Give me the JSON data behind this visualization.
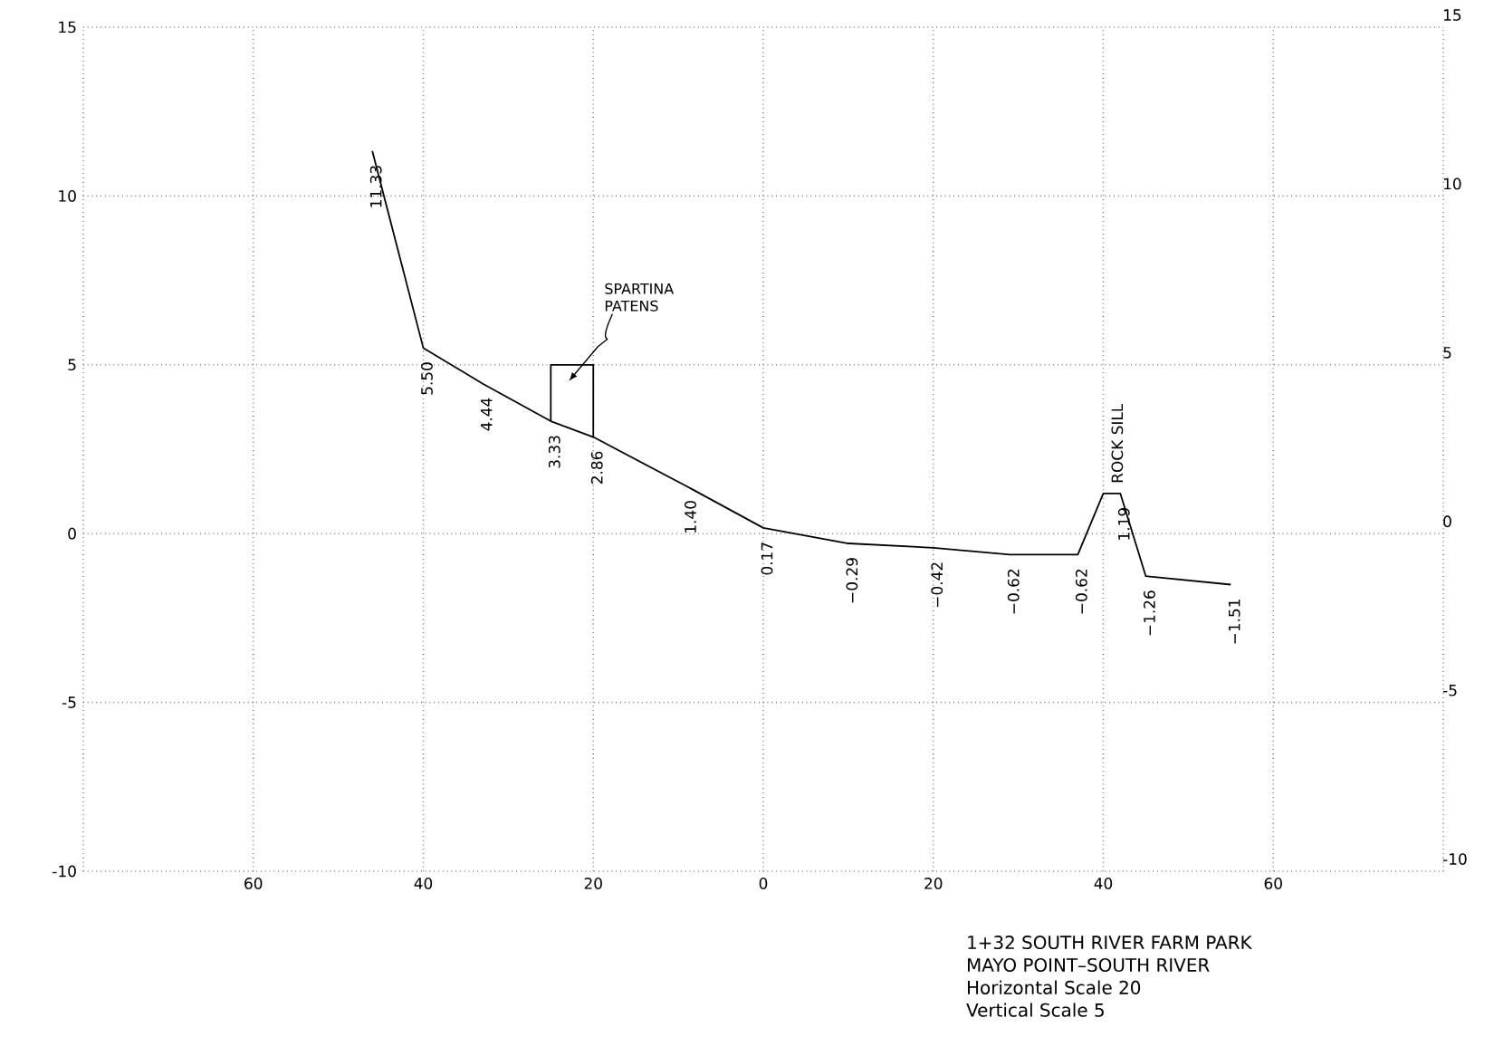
{
  "chart_data": {
    "type": "line",
    "series": [
      {
        "color": "#000000",
        "x": [
          -46,
          -40,
          -33,
          -25,
          -20,
          -9,
          0,
          10,
          20,
          29,
          37,
          40,
          42,
          45,
          55
        ],
        "values": [
          11.33,
          5.5,
          4.44,
          3.33,
          2.86,
          1.4,
          0.17,
          -0.29,
          -0.42,
          -0.62,
          -0.62,
          1.19,
          1.19,
          -1.26,
          -1.51
        ],
        "value_labels": [
          "11.33",
          "5.50",
          "4.44",
          "3.33",
          "2.86",
          "1.40",
          "0.17",
          "−0.29",
          "−0.42",
          "−0.62",
          "−0.62",
          null,
          "1.19",
          "−1.26",
          "−1.51"
        ]
      },
      {
        "color": "#000000",
        "x": [
          -25,
          -25,
          -20,
          -20
        ],
        "values": [
          3.33,
          5,
          5,
          2.86
        ]
      }
    ],
    "line_style": "solid",
    "xlim": [
      -80,
      80
    ],
    "xticks": [
      {
        "value": -80,
        "label": null
      },
      {
        "value": -60,
        "label": "60"
      },
      {
        "value": -40,
        "label": "40"
      },
      {
        "value": -20,
        "label": "20"
      },
      0,
      20,
      40,
      60,
      {
        "value": 80,
        "label": null
      }
    ],
    "ylim": [
      -10,
      15
    ],
    "yticks": [
      -10,
      -5,
      0,
      5,
      10,
      15
    ],
    "y2lim": [
      -10,
      15
    ],
    "y2ticks": [
      -10,
      -5,
      0,
      5,
      10,
      15
    ],
    "grid": true,
    "annotations": [
      "SPARTINA PATENS",
      {
        "text": "ROCK SILL",
        "x": 41,
        "y": 1.19
      },
      "1+32 SOUTH RIVER FARM PARK",
      "MAYO POINT–SOUTH RIVER",
      "Horizontal Scale 20",
      "Vertical Scale 5"
    ]
  }
}
